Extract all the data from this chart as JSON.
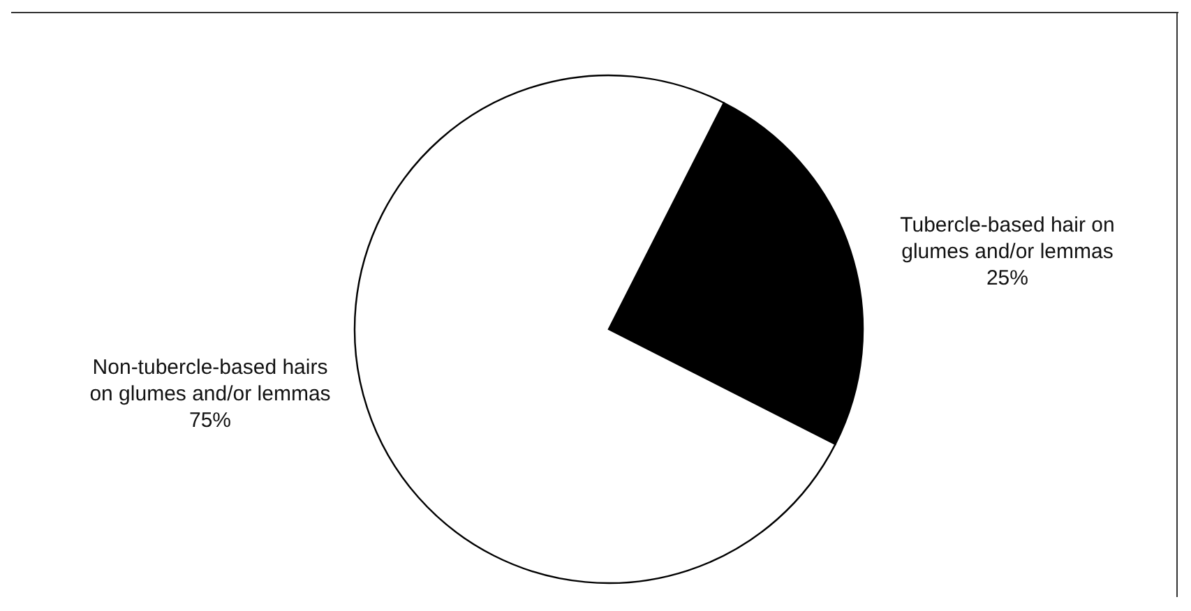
{
  "chart_data": {
    "type": "pie",
    "categories": [
      "Tubercle-based hair on glumes and/or lemmas",
      "Non-tubercle-based hairs on glumes and/or lemmas"
    ],
    "values": [
      25,
      75
    ],
    "colors": [
      "#000000",
      "#ffffff"
    ],
    "value_labels": [
      "25%",
      "75%"
    ]
  }
}
